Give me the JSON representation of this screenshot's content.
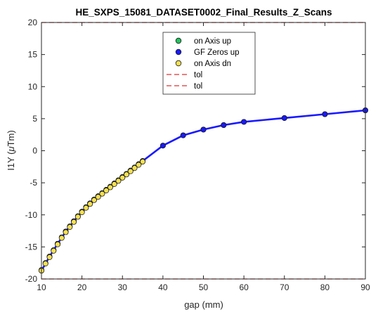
{
  "colors": {
    "axis": "#262626",
    "background": "#ffffff",
    "tol_line": "#e03030",
    "fit_line": "#1a1aff",
    "green_marker": "#22c55e",
    "blue_marker": "#1a1aff",
    "yellow_marker": "#f5e050",
    "marker_edge": "#1a1a1a"
  },
  "chart_data": {
    "type": "scatter",
    "title": "HE_SXPS_15081_DATASET0002_Final_Results_Z_Scans",
    "xlabel": "gap (mm)",
    "ylabel": "I1Y (μTm)",
    "ylabel_parts": {
      "main": "I1Y (",
      "mu": "μ",
      "rest": "Tm)"
    },
    "xlim": [
      10,
      90
    ],
    "ylim": [
      -20,
      20
    ],
    "xticks": [
      10,
      20,
      30,
      40,
      50,
      60,
      70,
      80,
      90
    ],
    "yticks": [
      -20,
      -15,
      -10,
      -5,
      0,
      5,
      10,
      15,
      20
    ],
    "grid": false,
    "legend_position": "top-center",
    "legend": [
      {
        "label": "on Axis up",
        "kind": "marker",
        "color": "#22c55e"
      },
      {
        "label": "GF Zeros up",
        "kind": "marker",
        "color": "#1a1aff"
      },
      {
        "label": "on Axis dn",
        "kind": "marker",
        "color": "#f5e050"
      },
      {
        "label": "tol",
        "kind": "dashed-line",
        "color": "#e03030"
      },
      {
        "label": "tol",
        "kind": "dashed-line",
        "color": "#e03030"
      }
    ],
    "tolerance": [
      20,
      -20
    ],
    "series": [
      {
        "name": "on Axis up",
        "x": [
          10,
          11,
          12,
          13,
          14,
          15,
          16,
          17,
          18,
          19,
          20,
          21,
          22,
          23,
          24,
          25,
          26,
          27,
          28,
          29,
          30,
          31,
          32,
          33,
          34,
          35,
          40,
          45,
          50,
          55,
          60,
          70,
          80,
          90
        ],
        "y": [
          -18.6,
          -17.5,
          -16.5,
          -15.5,
          -14.5,
          -13.5,
          -12.6,
          -11.8,
          -11.0,
          -10.2,
          -9.5,
          -8.8,
          -8.2,
          -7.6,
          -7.1,
          -6.6,
          -6.1,
          -5.6,
          -5.1,
          -4.6,
          -4.1,
          -3.6,
          -3.1,
          -2.6,
          -2.1,
          -1.6,
          0.8,
          2.4,
          3.3,
          4.0,
          4.5,
          5.1,
          5.7,
          6.3
        ]
      },
      {
        "name": "GF Zeros up",
        "x": [
          10,
          12,
          14,
          16,
          18,
          20,
          22,
          24,
          26,
          28,
          30,
          32,
          34,
          35,
          40,
          45,
          50,
          55,
          60,
          70,
          80,
          90
        ],
        "y": [
          -18.7,
          -16.5,
          -14.5,
          -12.6,
          -11.0,
          -9.5,
          -8.2,
          -7.1,
          -6.1,
          -5.1,
          -4.1,
          -3.1,
          -2.1,
          -1.6,
          0.8,
          2.4,
          3.3,
          4.0,
          4.5,
          5.1,
          5.7,
          6.3
        ]
      },
      {
        "name": "on Axis dn",
        "x": [
          10,
          11,
          12,
          13,
          14,
          15,
          16,
          17,
          18,
          19,
          20,
          21,
          22,
          23,
          24,
          25,
          26,
          27,
          28,
          29,
          30,
          31,
          32,
          33,
          34,
          35
        ],
        "y": [
          -18.7,
          -17.6,
          -16.6,
          -15.6,
          -14.6,
          -13.6,
          -12.7,
          -11.9,
          -11.1,
          -10.3,
          -9.6,
          -8.9,
          -8.3,
          -7.7,
          -7.2,
          -6.7,
          -6.2,
          -5.7,
          -5.2,
          -4.7,
          -4.2,
          -3.7,
          -3.2,
          -2.7,
          -2.2,
          -1.7
        ]
      }
    ]
  }
}
